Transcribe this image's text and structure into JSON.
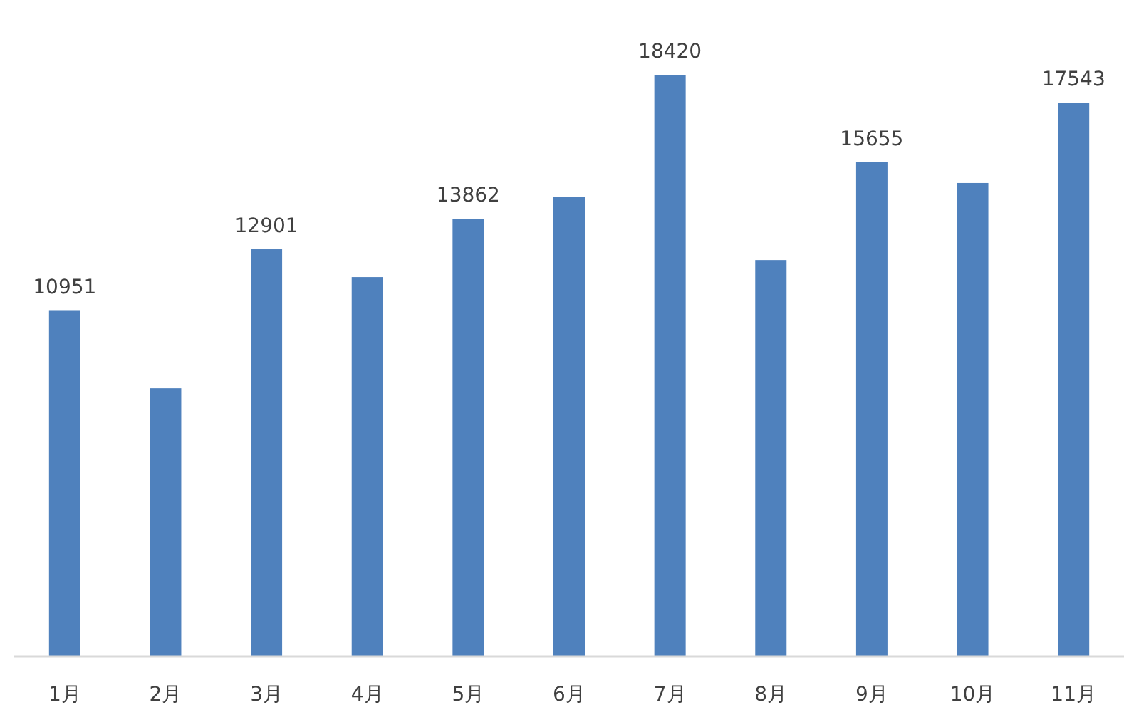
{
  "chart_data": {
    "type": "bar",
    "categories": [
      "1月",
      "2月",
      "3月",
      "4月",
      "5月",
      "6月",
      "7月",
      "8月",
      "9月",
      "10月",
      "11月"
    ],
    "values": [
      10951,
      8500,
      12901,
      12020,
      13862,
      14550,
      18420,
      12560,
      15655,
      15000,
      17543
    ],
    "value_labels": [
      "10951",
      null,
      "12901",
      null,
      "13862",
      null,
      "18420",
      null,
      "15655",
      null,
      "17543"
    ],
    "color": "#4f81bd"
  }
}
